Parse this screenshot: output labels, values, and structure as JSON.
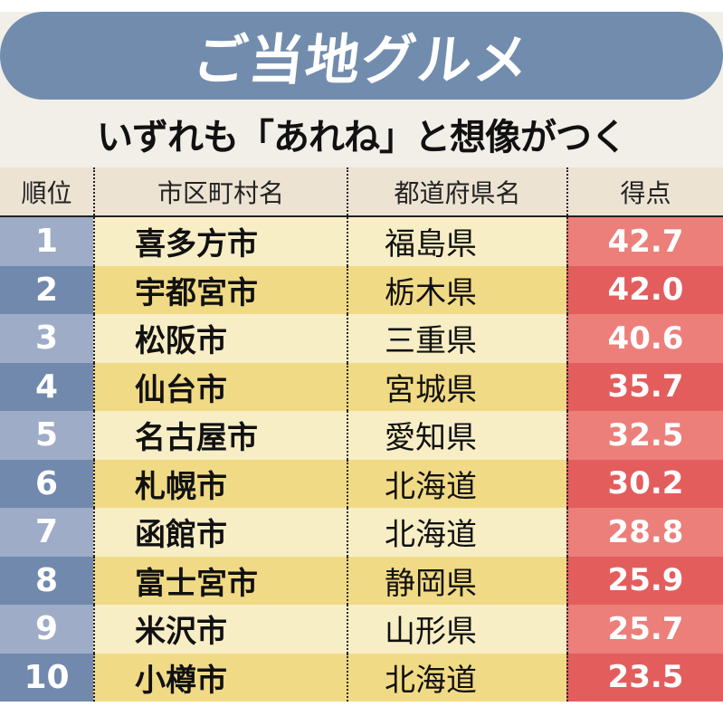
{
  "banner": {
    "title": "ご当地グルメ"
  },
  "subtitle": "いずれも「あれね」と想像がつく",
  "table": {
    "headers": {
      "rank": "順位",
      "city": "市区町村名",
      "prefecture": "都道府県名",
      "score": "得点"
    },
    "rows": [
      {
        "rank": "1",
        "city": "喜多方市",
        "prefecture": "福島県",
        "score": "42.7"
      },
      {
        "rank": "2",
        "city": "宇都宮市",
        "prefecture": "栃木県",
        "score": "42.0"
      },
      {
        "rank": "3",
        "city": "松阪市",
        "prefecture": "三重県",
        "score": "40.6"
      },
      {
        "rank": "4",
        "city": "仙台市",
        "prefecture": "宮城県",
        "score": "35.7"
      },
      {
        "rank": "5",
        "city": "名古屋市",
        "prefecture": "愛知県",
        "score": "32.5"
      },
      {
        "rank": "6",
        "city": "札幌市",
        "prefecture": "北海道",
        "score": "30.2"
      },
      {
        "rank": "7",
        "city": "函館市",
        "prefecture": "北海道",
        "score": "28.8"
      },
      {
        "rank": "8",
        "city": "富士宮市",
        "prefecture": "静岡県",
        "score": "25.9"
      },
      {
        "rank": "9",
        "city": "米沢市",
        "prefecture": "山形県",
        "score": "25.7"
      },
      {
        "rank": "10",
        "city": "小樽市",
        "prefecture": "北海道",
        "score": "23.5"
      }
    ]
  },
  "colors": {
    "banner": "#728cad",
    "rank_light": "#9eacc7",
    "rank_dark": "#7089ad",
    "name_light": "#f8eec6",
    "name_dark": "#f1da85",
    "score_light": "#ec7f7a",
    "score_dark": "#e45d5d"
  },
  "chart_data": {
    "type": "table",
    "title": "ご当地グルメ",
    "subtitle": "いずれも「あれね」と想像がつく",
    "columns": [
      "順位",
      "市区町村名",
      "都道府県名",
      "得点"
    ],
    "rows": [
      [
        1,
        "喜多方市",
        "福島県",
        42.7
      ],
      [
        2,
        "宇都宮市",
        "栃木県",
        42.0
      ],
      [
        3,
        "松阪市",
        "三重県",
        40.6
      ],
      [
        4,
        "仙台市",
        "宮城県",
        35.7
      ],
      [
        5,
        "名古屋市",
        "愛知県",
        32.5
      ],
      [
        6,
        "札幌市",
        "北海道",
        30.2
      ],
      [
        7,
        "函館市",
        "北海道",
        28.8
      ],
      [
        8,
        "富士宮市",
        "静岡県",
        25.9
      ],
      [
        9,
        "米沢市",
        "山形県",
        25.7
      ],
      [
        10,
        "小樽市",
        "北海道",
        23.5
      ]
    ]
  }
}
